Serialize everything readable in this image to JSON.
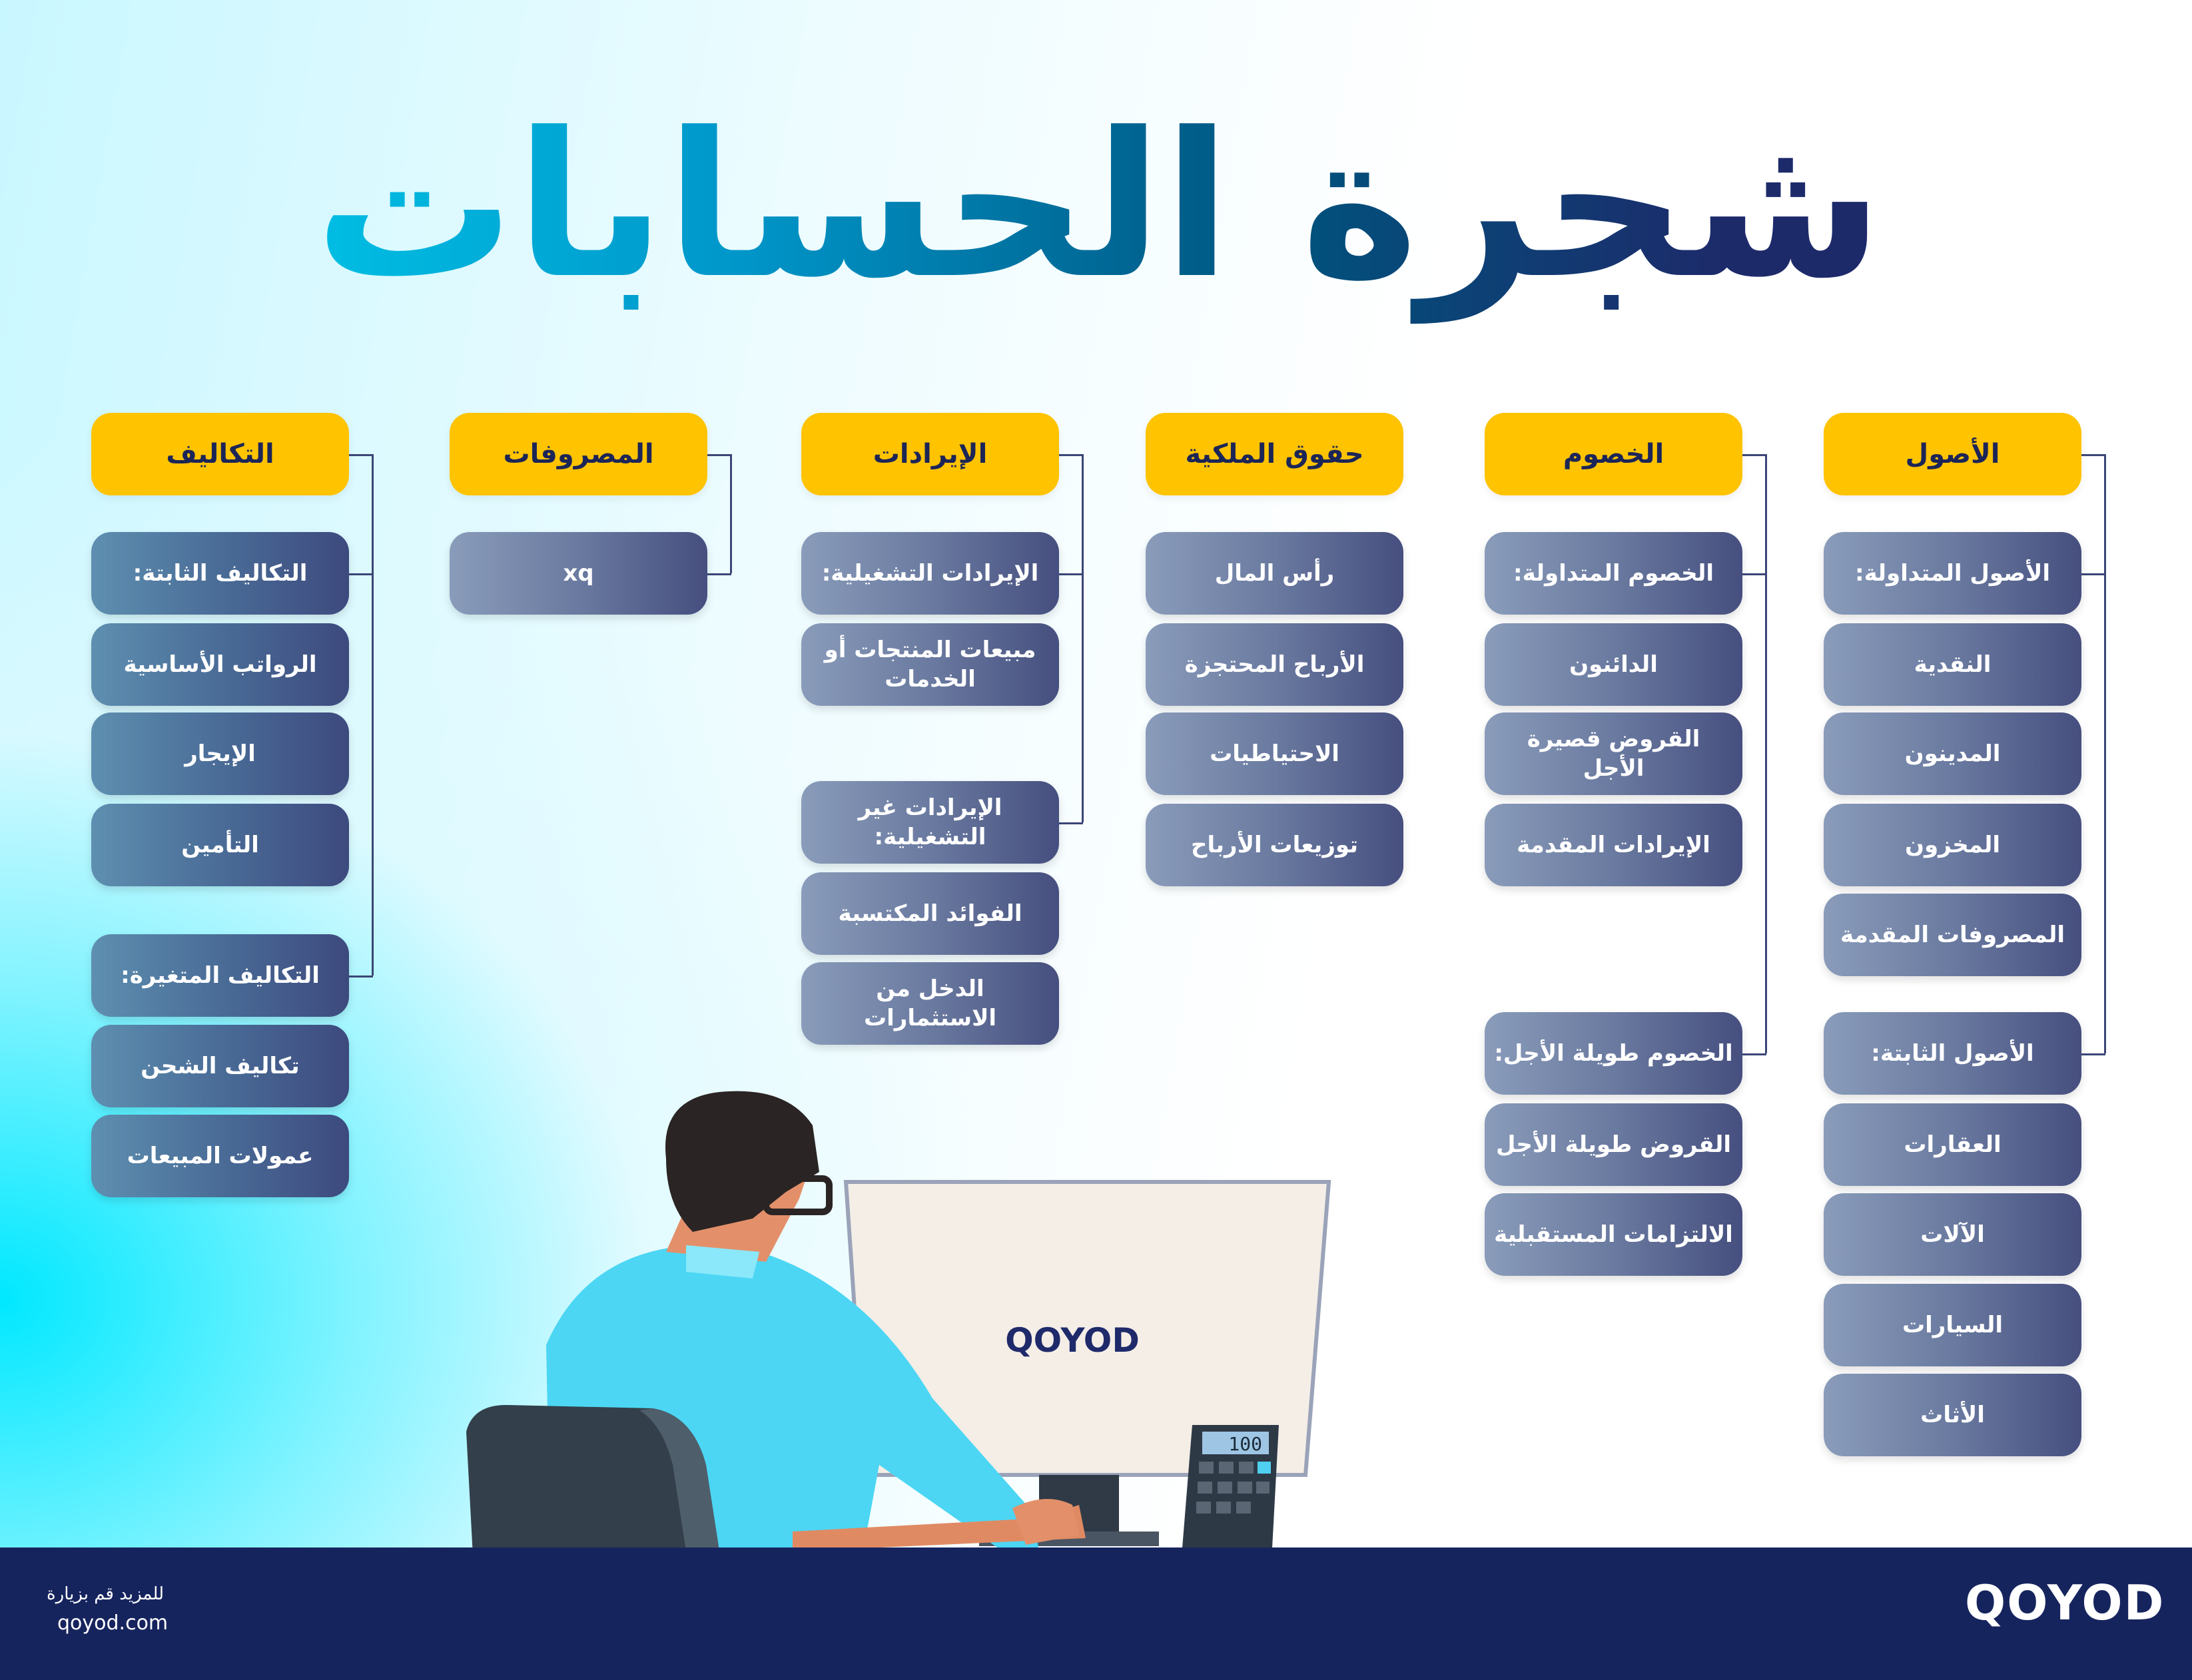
{
  "title": "شجرة الحسابات",
  "columns": [
    {
      "header": "التكاليف",
      "items": [
        "التكاليف الثابتة:",
        "الرواتب الأساسية",
        "الإيجار",
        "التأمين",
        "التكاليف المتغيرة:",
        "تكاليف الشحن",
        "عمولات المبيعات"
      ]
    },
    {
      "header": "المصروفات",
      "items": [
        "xq"
      ]
    },
    {
      "header": "الإيرادات",
      "items": [
        "الإيرادات التشغيلية:",
        "مبيعات المنتجات أو الخدمات",
        "الإيرادات غير التشغيلية:",
        "الفوائد المكتسبة",
        "الدخل من الاستثمارات"
      ]
    },
    {
      "header": "حقوق الملكية",
      "items": [
        "رأس المال",
        "الأرباح المحتجزة",
        "الاحتياطيات",
        "توزيعات الأرباح"
      ]
    },
    {
      "header": "الخصوم",
      "items": [
        "الخصوم المتداولة:",
        "الدائنون",
        "القروض قصيرة الأجل",
        "الإيرادات المقدمة",
        "الخصوم طويلة الأجل:",
        "القروض طويلة الأجل",
        "الالتزامات المستقبلية"
      ]
    },
    {
      "header": "الأصول",
      "items": [
        "الأصول المتداولة:",
        "النقدية",
        "المدينون",
        "المخزون",
        "المصروفات المقدمة",
        "الأصول الثابتة:",
        "العقارات",
        "الآلات",
        "السيارات",
        "الأثاث"
      ]
    }
  ],
  "monitor_logo": "QOYOD",
  "calculator_display": "100",
  "footer": {
    "visit_text": "للمزيد قم بزيارة",
    "website": "qoyod.com",
    "logo": "QOYOD"
  },
  "colors": {
    "header_bg": "#ffc300",
    "footer_bg": "#16245e",
    "item_dark": "#464f7f",
    "item_light": "#8a9cba"
  }
}
